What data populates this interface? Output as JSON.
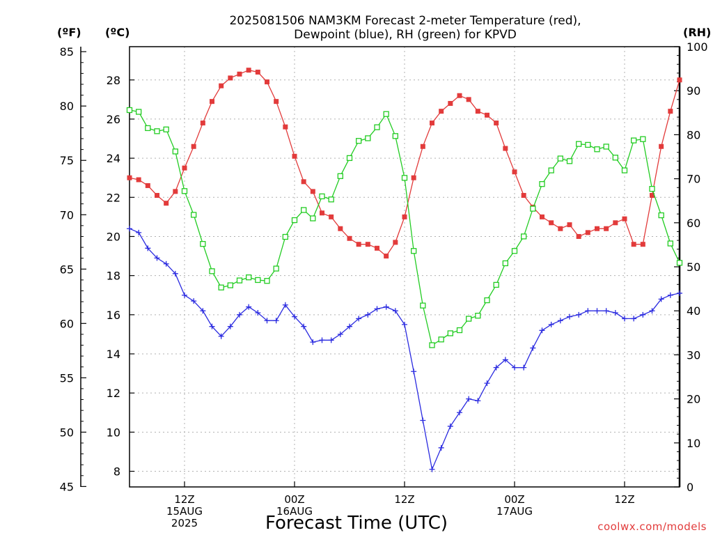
{
  "chart_data": {
    "type": "line",
    "title_line1": "2025081506 NAM3KM Forecast 2-meter Temperature (red),",
    "title_line2": "Dewpoint (blue), RH (green) for KPVD",
    "xlabel": "Forecast Time (UTC)",
    "unit_f": "(ºF)",
    "unit_c": "(ºC)",
    "unit_rh": "(RH)",
    "credit": "coolwx.com/models",
    "x_hours": [
      0,
      1,
      2,
      3,
      4,
      5,
      6,
      7,
      8,
      9,
      10,
      11,
      12,
      13,
      14,
      15,
      16,
      17,
      18,
      19,
      20,
      21,
      22,
      23,
      24,
      25,
      26,
      27,
      28,
      29,
      30,
      31,
      32,
      33,
      34,
      35,
      36,
      37,
      38,
      39,
      40,
      41,
      42,
      43,
      44,
      45,
      46,
      47,
      48,
      49,
      50,
      51,
      52,
      53,
      54,
      55,
      56,
      57,
      58,
      59,
      60
    ],
    "xlim": [
      0,
      60
    ],
    "x_ticks": [
      {
        "hour": 6,
        "lines": [
          "12Z",
          "15AUG",
          "2025"
        ]
      },
      {
        "hour": 18,
        "lines": [
          "00Z",
          "16AUG"
        ]
      },
      {
        "hour": 30,
        "lines": [
          "12Z"
        ]
      },
      {
        "hour": 42,
        "lines": [
          "00Z",
          "17AUG"
        ]
      },
      {
        "hour": 54,
        "lines": [
          "12Z"
        ]
      }
    ],
    "y_c_ticks": [
      8,
      10,
      12,
      14,
      16,
      18,
      20,
      22,
      24,
      26,
      28
    ],
    "y_f_ticks": [
      45,
      50,
      55,
      60,
      65,
      70,
      75,
      80,
      85
    ],
    "y_rh_ticks": [
      0,
      10,
      20,
      30,
      40,
      50,
      60,
      70,
      80,
      90,
      100
    ],
    "ylim_c": [
      7.2,
      29.7
    ],
    "grid": true,
    "series": [
      {
        "name": "Temperature (red)",
        "axis": "c",
        "color": "#e23b3b",
        "marker": "filled-square",
        "values": [
          23.0,
          22.9,
          22.6,
          22.1,
          21.7,
          22.3,
          23.5,
          24.6,
          25.8,
          26.9,
          27.7,
          28.1,
          28.3,
          28.5,
          28.4,
          27.9,
          26.9,
          25.6,
          24.1,
          22.8,
          22.3,
          21.2,
          21.0,
          20.4,
          19.9,
          19.6,
          19.6,
          19.4,
          19.0,
          19.7,
          21.0,
          23.0,
          24.6,
          25.8,
          26.4,
          26.8,
          27.2,
          27.0,
          26.4,
          26.2,
          25.8,
          24.5,
          23.3,
          22.1,
          21.5,
          21.0,
          20.7,
          20.4,
          20.6,
          20.0,
          20.2,
          20.4,
          20.4,
          20.7,
          20.9,
          19.6,
          19.6,
          22.1,
          24.6,
          26.4,
          28.0
        ]
      },
      {
        "name": "Dewpoint (blue)",
        "axis": "c",
        "color": "#2a2ae0",
        "marker": "plus",
        "values": [
          20.4,
          20.2,
          19.4,
          18.9,
          18.6,
          18.1,
          17.0,
          16.7,
          16.2,
          15.4,
          14.9,
          15.4,
          16.0,
          16.4,
          16.1,
          15.7,
          15.7,
          16.5,
          15.9,
          15.4,
          14.6,
          14.7,
          14.7,
          15.0,
          15.4,
          15.8,
          16.0,
          16.3,
          16.4,
          16.2,
          15.5,
          13.1,
          10.6,
          8.1,
          9.2,
          10.3,
          11.0,
          11.7,
          11.6,
          12.5,
          13.3,
          13.7,
          13.3,
          13.3,
          14.3,
          15.2,
          15.5,
          15.7,
          15.9,
          16.0,
          16.2,
          16.2,
          16.2,
          16.1,
          15.8,
          15.8,
          16.0,
          16.2,
          16.8,
          17.0,
          17.1
        ]
      },
      {
        "name": "RH (green)",
        "axis": "rh",
        "color": "#22cc22",
        "marker": "open-square",
        "values": [
          85.6,
          85.2,
          81.5,
          80.8,
          81.2,
          76.2,
          67.2,
          61.8,
          55.2,
          49.0,
          45.3,
          45.8,
          46.9,
          47.6,
          47.0,
          46.8,
          49.6,
          56.8,
          60.6,
          62.9,
          61.0,
          66.0,
          65.3,
          70.6,
          74.7,
          78.6,
          79.2,
          81.7,
          84.7,
          79.7,
          70.2,
          53.6,
          41.2,
          32.2,
          33.5,
          34.9,
          35.6,
          38.2,
          38.9,
          42.4,
          45.9,
          50.8,
          53.6,
          56.9,
          63.2,
          68.8,
          71.9,
          74.6,
          74.0,
          77.9,
          77.7,
          76.7,
          77.3,
          74.8,
          71.9,
          78.7,
          79.0,
          67.7,
          61.7,
          55.3,
          50.9
        ]
      }
    ]
  }
}
